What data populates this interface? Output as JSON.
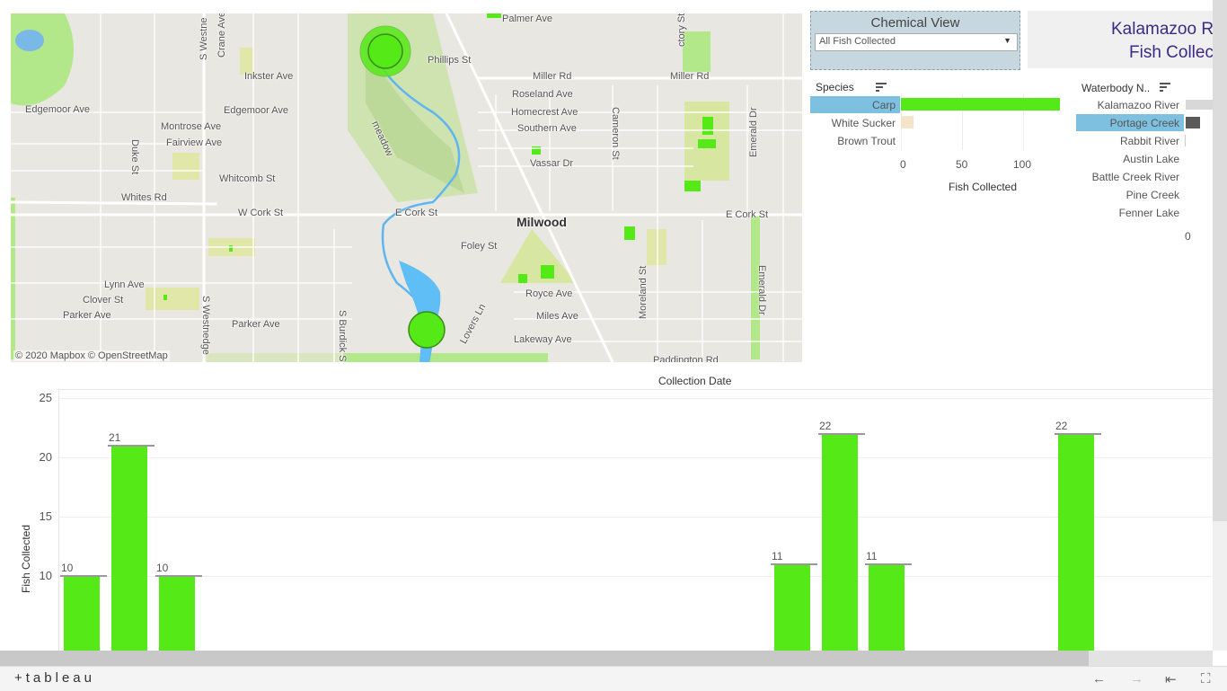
{
  "map": {
    "attribution": "© 2020 Mapbox © OpenStreetMap",
    "place": "Milwood",
    "streets_h": [
      "Palmer Ave",
      "Phillips St",
      "Inkster Ave",
      "Miller Rd",
      "Miller Rd",
      "Roseland Ave",
      "Edgemoor Ave",
      "Edgemoor Ave",
      "Homecrest Ave",
      "Montrose Ave",
      "Southern Ave",
      "Fairview Ave",
      "Vassar Dr",
      "Whitcomb St",
      "Whites Rd",
      "W Cork St",
      "E Cork St",
      "E Cork St",
      "Foley St",
      "Lynn Ave",
      "Royce Ave",
      "Clover St",
      "Parker Ave",
      "Miles Ave",
      "Parker Ave",
      "Lakeway Ave",
      "Paddington Rd",
      "meadow"
    ],
    "streets_v": [
      "S Westne",
      "Crane Ave",
      "ctory St",
      "Duke St",
      "Cameron St",
      "Emerald Dr",
      "Emerald Dr",
      "S Westnedge",
      "S Burdick S",
      "Lovers Ln",
      "Moreland St"
    ],
    "marker_colors": [
      "#55ea17"
    ]
  },
  "chemical_view": {
    "title": "Chemical View",
    "selected": "All Fish Collected"
  },
  "title": {
    "line1": "Kalamazoo R",
    "line2": "Fish Collec"
  },
  "species_chart": {
    "header": "Species",
    "categories": [
      "Carp",
      "White Sucker",
      "Brown Trout"
    ],
    "values": [
      130,
      10,
      0
    ],
    "selected": "Carp",
    "ticks": [
      "0",
      "50",
      "100"
    ],
    "xlabel": "Fish Collected"
  },
  "waterbody_chart": {
    "header": "Waterbody N..",
    "categories": [
      "Kalamazoo River",
      "Portage Creek",
      "Rabbit River",
      "Austin Lake",
      "Battle Creek River",
      "Pine Creek",
      "Fenner Lake"
    ],
    "selected": "Portage Creek",
    "ticks": [
      "0"
    ]
  },
  "chart_data": {
    "type": "bar",
    "title": "Collection Date",
    "xlabel": "",
    "ylabel": "Fish Collected",
    "ylim": [
      5,
      25
    ],
    "yticks": [
      "25",
      "20",
      "15",
      "10"
    ],
    "values": [
      10,
      21,
      10,
      11,
      22,
      11,
      22
    ],
    "labels": [
      "10",
      "21",
      "10",
      "11",
      "22",
      "11",
      "22"
    ],
    "color": "#55ea17"
  },
  "footer": {
    "logo": "+tableau",
    "icons": [
      "undo-icon",
      "redo-icon",
      "revert-icon",
      "fullscreen-icon"
    ]
  }
}
